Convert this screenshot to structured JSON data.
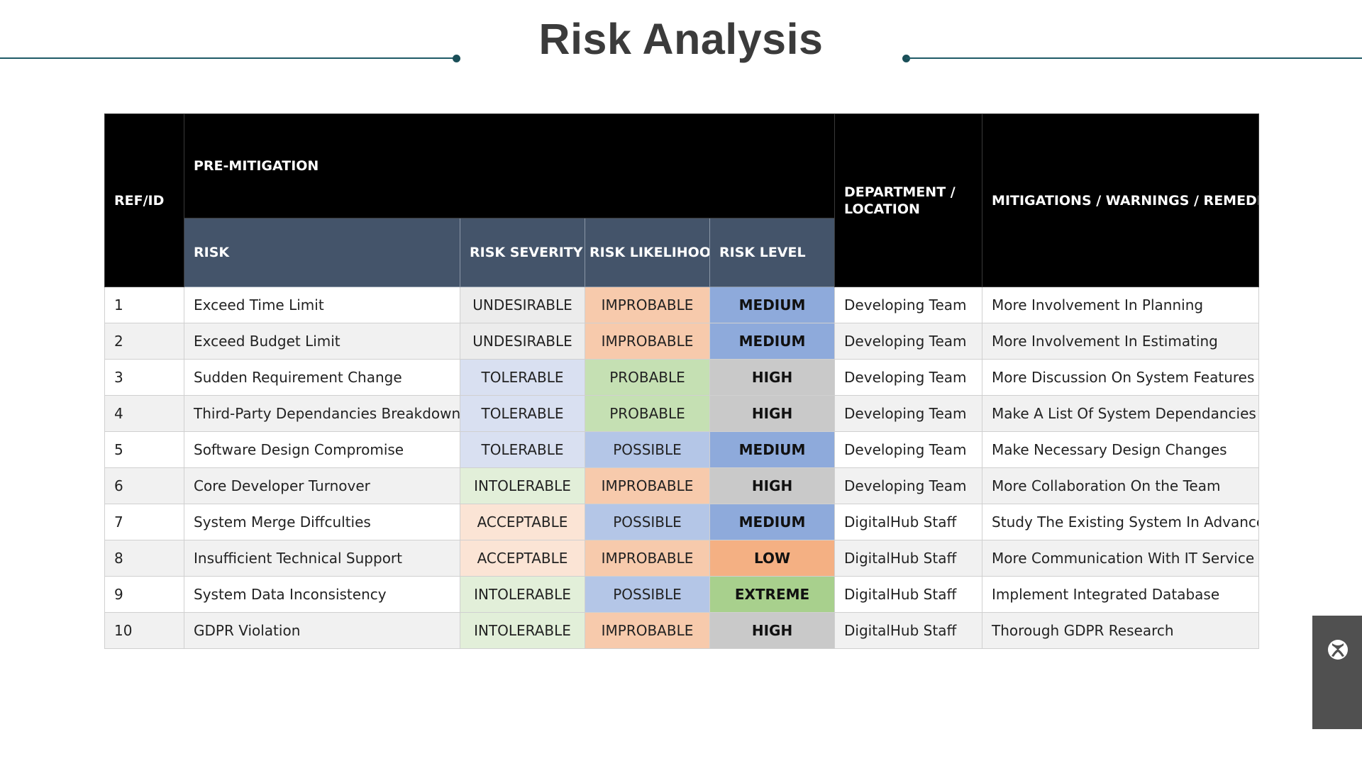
{
  "title": "Risk Analysis",
  "header": {
    "ref_id": "REF/ID",
    "pre_mitigation": "PRE-MITIGATION",
    "department": "DEPARTMENT /\nLOCATION",
    "mitigations": "MITIGATIONS / WARNINGS / REMEDIES",
    "risk": "RISK",
    "risk_severity": "RISK SEVERITY",
    "risk_likelihood": "RISK LIKELIHOOD",
    "risk_level": "RISK LEVEL"
  },
  "colors": {
    "header_black": "#000000",
    "header_slate": "#44546a",
    "severity": {
      "UNDESIRABLE": "#ececec",
      "TOLERABLE": "#d9e0f1",
      "INTOLERABLE": "#e2efd9",
      "ACCEPTABLE": "#fbe4d5"
    },
    "likelihood": {
      "IMPROBABLE": "#f7caac",
      "PROBABLE": "#c5e0b3",
      "POSSIBLE": "#b4c6e7"
    },
    "level": {
      "MEDIUM": "#8eaadb",
      "HIGH": "#c9c9c9",
      "LOW": "#f4b083",
      "EXTREME": "#a8d08d"
    }
  },
  "rows": [
    {
      "ref": "1",
      "risk": "Exceed Time Limit",
      "severity": "UNDESIRABLE",
      "likelihood": "IMPROBABLE",
      "level": "MEDIUM",
      "department": "Developing Team",
      "mitigation": "More Involvement In Planning"
    },
    {
      "ref": "2",
      "risk": "Exceed Budget Limit",
      "severity": "UNDESIRABLE",
      "likelihood": "IMPROBABLE",
      "level": "MEDIUM",
      "department": "Developing Team",
      "mitigation": "More Involvement In Estimating"
    },
    {
      "ref": "3",
      "risk": "Sudden Requirement Change",
      "severity": "TOLERABLE",
      "likelihood": "PROBABLE",
      "level": "HIGH",
      "department": "Developing Team",
      "mitigation": "More Discussion On System Features"
    },
    {
      "ref": "4",
      "risk": "Third-Party Dependancies Breakdown",
      "severity": "TOLERABLE",
      "likelihood": "PROBABLE",
      "level": "HIGH",
      "department": "Developing Team",
      "mitigation": "Make A List Of System Dependancies"
    },
    {
      "ref": "5",
      "risk": "Software Design Compromise",
      "severity": "TOLERABLE",
      "likelihood": "POSSIBLE",
      "level": "MEDIUM",
      "department": "Developing Team",
      "mitigation": "Make Necessary Design Changes"
    },
    {
      "ref": "6",
      "risk": "Core Developer Turnover",
      "severity": "INTOLERABLE",
      "likelihood": "IMPROBABLE",
      "level": "HIGH",
      "department": "Developing Team",
      "mitigation": "More Collaboration On the Team"
    },
    {
      "ref": "7",
      "risk": "System Merge Diffculties",
      "severity": "ACCEPTABLE",
      "likelihood": "POSSIBLE",
      "level": "MEDIUM",
      "department": "DigitalHub Staff",
      "mitigation": "Study The Existing System In Advance"
    },
    {
      "ref": "8",
      "risk": "Insufficient Technical Support",
      "severity": "ACCEPTABLE",
      "likelihood": "IMPROBABLE",
      "level": "LOW",
      "department": "DigitalHub Staff",
      "mitigation": "More Communication With IT Service"
    },
    {
      "ref": "9",
      "risk": "System Data Inconsistency",
      "severity": "INTOLERABLE",
      "likelihood": "POSSIBLE",
      "level": "EXTREME",
      "department": "DigitalHub Staff",
      "mitigation": "Implement Integrated Database"
    },
    {
      "ref": "10",
      "risk": "GDPR Violation",
      "severity": "INTOLERABLE",
      "likelihood": "IMPROBABLE",
      "level": "HIGH",
      "department": "DigitalHub Staff",
      "mitigation": "Thorough GDPR Research"
    }
  ],
  "widget": {
    "icon": "xbox-icon"
  }
}
